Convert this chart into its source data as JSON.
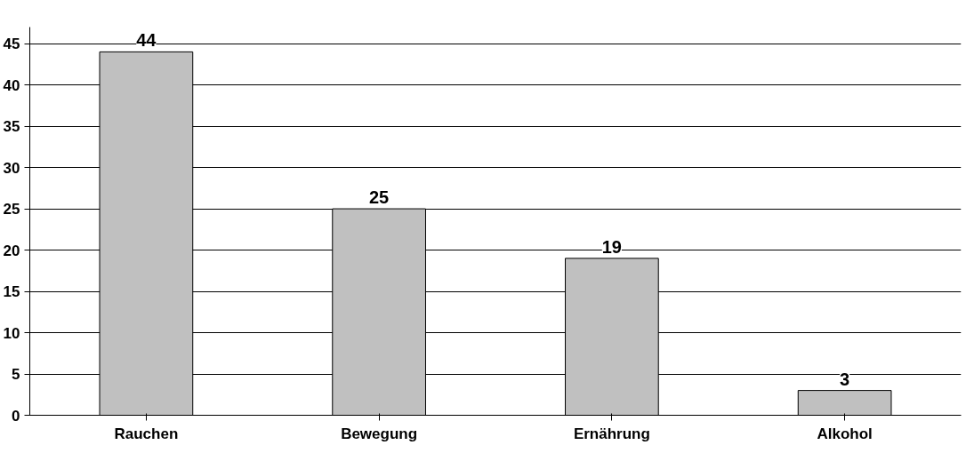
{
  "chart_data": {
    "type": "bar",
    "categories": [
      "Rauchen",
      "Bewegung",
      "Ernährung",
      "Alkohol"
    ],
    "values": [
      44,
      25,
      19,
      3
    ],
    "color": "#c0c0c0",
    "data_labels": true,
    "ylim": [
      0,
      47
    ],
    "yticks": [
      0,
      5,
      10,
      15,
      20,
      25,
      30,
      35,
      40,
      45
    ],
    "grid": "y"
  }
}
